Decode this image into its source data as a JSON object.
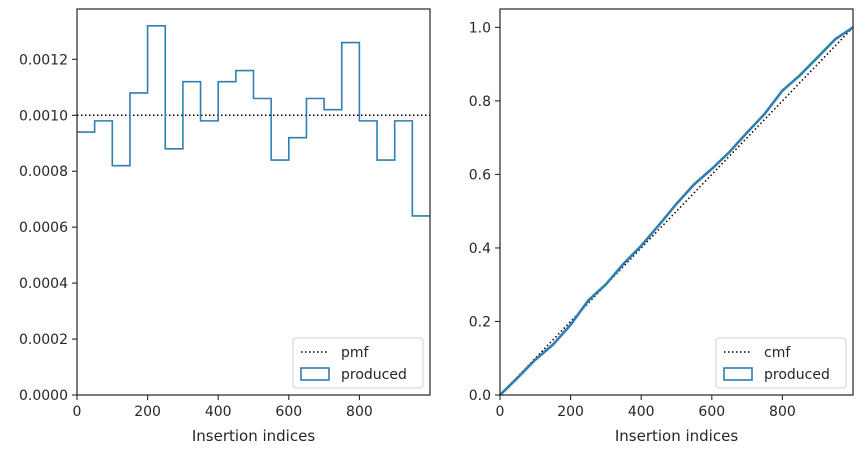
{
  "chart_data": [
    {
      "type": "histogram-step",
      "xlabel": "Insertion indices",
      "ylabel": "",
      "xlim": [
        0,
        1000
      ],
      "ylim": [
        0,
        0.00138
      ],
      "xticks": [
        0,
        200,
        400,
        600,
        800
      ],
      "xtick_labels": [
        "0",
        "200",
        "400",
        "600",
        "800"
      ],
      "yticks": [
        0,
        0.0002,
        0.0004,
        0.0006,
        0.0008,
        0.001,
        0.0012
      ],
      "ytick_labels": [
        "0.0000",
        "0.0002",
        "0.0004",
        "0.0006",
        "0.0008",
        "0.0010",
        "0.0012"
      ],
      "legend_position": "lower-right",
      "series": [
        {
          "name": "pmf",
          "style": "dotted",
          "color": "#000000",
          "y": 0.001
        },
        {
          "name": "produced",
          "style": "step",
          "color": "#2f7fb0",
          "bin_edges": [
            0,
            50,
            100,
            150,
            200,
            250,
            300,
            350,
            400,
            450,
            500,
            550,
            600,
            650,
            700,
            750,
            800,
            850,
            900,
            950,
            1000
          ],
          "values": [
            0.00094,
            0.00098,
            0.00082,
            0.00108,
            0.00132,
            0.00088,
            0.00112,
            0.00098,
            0.00112,
            0.00116,
            0.00106,
            0.00084,
            0.00092,
            0.00106,
            0.00102,
            0.00126,
            0.00098,
            0.00084,
            0.00098,
            0.00064
          ]
        }
      ]
    },
    {
      "type": "line",
      "xlabel": "Insertion indices",
      "ylabel": "",
      "xlim": [
        0,
        1000
      ],
      "ylim": [
        0,
        1.05
      ],
      "xticks": [
        0,
        200,
        400,
        600,
        800
      ],
      "xtick_labels": [
        "0",
        "200",
        "400",
        "600",
        "800"
      ],
      "yticks": [
        0,
        0.2,
        0.4,
        0.6,
        0.8,
        1.0
      ],
      "ytick_labels": [
        "0.0",
        "0.2",
        "0.4",
        "0.6",
        "0.8",
        "1.0"
      ],
      "legend_position": "lower-right",
      "series": [
        {
          "name": "cmf",
          "style": "dotted",
          "color": "#000000",
          "x": [
            0,
            1000
          ],
          "y": [
            0,
            1
          ]
        },
        {
          "name": "produced",
          "style": "solid",
          "color": "#2f7fb0",
          "x": [
            0,
            50,
            100,
            150,
            200,
            250,
            300,
            350,
            400,
            450,
            500,
            550,
            600,
            650,
            700,
            750,
            800,
            850,
            900,
            950,
            1000
          ],
          "y": [
            0.0,
            0.047,
            0.096,
            0.137,
            0.191,
            0.257,
            0.301,
            0.357,
            0.406,
            0.462,
            0.52,
            0.573,
            0.615,
            0.661,
            0.714,
            0.765,
            0.828,
            0.87,
            0.919,
            0.968,
            1.0
          ]
        }
      ]
    }
  ]
}
